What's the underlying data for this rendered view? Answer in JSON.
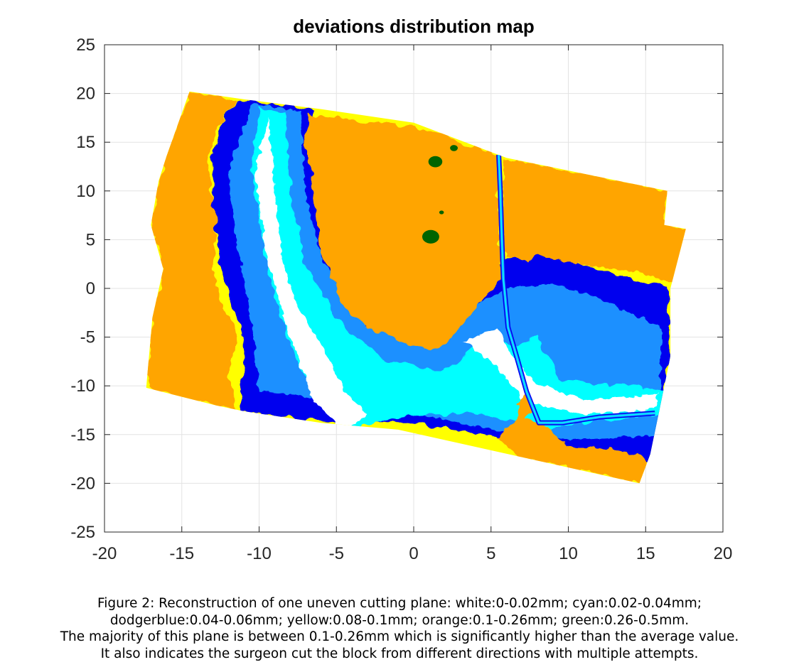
{
  "chart_data": {
    "type": "heatmap",
    "title": "deviations distribution map",
    "xlabel": "",
    "ylabel": "",
    "xlim": [
      -20,
      20
    ],
    "ylim": [
      -25,
      25
    ],
    "xticks": [
      -20,
      -15,
      -10,
      -5,
      0,
      5,
      10,
      15,
      20
    ],
    "yticks": [
      25,
      20,
      15,
      10,
      5,
      0,
      -5,
      -10,
      -15,
      -20,
      -25
    ],
    "grid": true,
    "color_classes": [
      {
        "name": "white",
        "range": "0-0.02mm",
        "color": "#ffffff"
      },
      {
        "name": "cyan",
        "range": "0.02-0.04mm",
        "color": "#00ffff"
      },
      {
        "name": "dodgerblue",
        "range": "0.04-0.06mm",
        "color": "#1e90ff"
      },
      {
        "name": "blue",
        "range": "",
        "color": "#0000ee"
      },
      {
        "name": "yellow",
        "range": "0.08-0.1mm",
        "color": "#ffff00"
      },
      {
        "name": "orange",
        "range": "0.1-0.26mm",
        "color": "#ffa500"
      },
      {
        "name": "green",
        "range": "0.26-0.5mm",
        "color": "#006400"
      }
    ],
    "plane_outline": [
      [
        -14.5,
        20.2
      ],
      [
        -11,
        19.4
      ],
      [
        -6,
        18.4
      ],
      [
        0,
        17
      ],
      [
        6,
        13.4
      ],
      [
        16.4,
        10
      ],
      [
        16.2,
        6.5
      ],
      [
        17.6,
        6.1
      ],
      [
        16.6,
        0
      ],
      [
        16.6,
        -7
      ],
      [
        15.3,
        -17
      ],
      [
        14.6,
        -20
      ],
      [
        -1,
        -14.5
      ],
      [
        -6,
        -13.8
      ],
      [
        -11,
        -12.6
      ],
      [
        -12.8,
        -12
      ],
      [
        -17.3,
        -10.2
      ],
      [
        -16.9,
        -3
      ],
      [
        -16.2,
        2
      ],
      [
        -17,
        6.5
      ],
      [
        -16.5,
        11
      ],
      [
        -16,
        13.5
      ]
    ],
    "regions": {
      "blue_band": [
        [
          -11.2,
          19.4
        ],
        [
          -6.5,
          18.3
        ],
        [
          -6,
          10
        ],
        [
          -5,
          3
        ],
        [
          -3.5,
          -1
        ],
        [
          -1,
          -3
        ],
        [
          1.5,
          -4
        ],
        [
          3.3,
          -0.5
        ],
        [
          5,
          2
        ],
        [
          7,
          4
        ],
        [
          10,
          3
        ],
        [
          14,
          1
        ],
        [
          16.4,
          0.2
        ],
        [
          16.5,
          -7
        ],
        [
          15.5,
          -17.8
        ],
        [
          11,
          -17
        ],
        [
          6,
          -15.5
        ],
        [
          0,
          -13.8
        ],
        [
          -5,
          -13.8
        ],
        [
          -11.2,
          -12.6
        ],
        [
          -11,
          -5
        ],
        [
          -12.5,
          2
        ],
        [
          -13,
          8
        ],
        [
          -13,
          14
        ],
        [
          -12.5,
          17
        ]
      ],
      "dodgerblue_band": [
        [
          -10.5,
          18.9
        ],
        [
          -7.3,
          18.2
        ],
        [
          -7,
          10
        ],
        [
          -6,
          3
        ],
        [
          -3,
          -3.8
        ],
        [
          1.5,
          -5.5
        ],
        [
          3.5,
          -2
        ],
        [
          6,
          0
        ],
        [
          9,
          0.5
        ],
        [
          12,
          -1
        ],
        [
          16,
          -4
        ],
        [
          16,
          -15
        ],
        [
          10,
          -15.5
        ],
        [
          5,
          -14.5
        ],
        [
          0,
          -12.8
        ],
        [
          -4.5,
          -11.5
        ],
        [
          -10,
          -10.5
        ],
        [
          -10.5,
          -3
        ],
        [
          -11.5,
          5
        ],
        [
          -12,
          12
        ]
      ],
      "cyan_band": [
        [
          -10,
          18.6
        ],
        [
          -8.3,
          18
        ],
        [
          -8,
          10
        ],
        [
          -7,
          2.5
        ],
        [
          -5,
          -3
        ],
        [
          -2,
          -7.2
        ],
        [
          2,
          -8.5
        ],
        [
          4.5,
          -5
        ],
        [
          6.5,
          -6
        ],
        [
          8,
          -5
        ],
        [
          9.5,
          -9.5
        ],
        [
          14,
          -10
        ],
        [
          16.3,
          -10.5
        ],
        [
          16,
          -13
        ],
        [
          12,
          -13.5
        ],
        [
          8.5,
          -14.5
        ],
        [
          4,
          -12.8
        ],
        [
          0,
          -13
        ],
        [
          -4,
          -14.3
        ],
        [
          -6,
          -12
        ],
        [
          -8,
          -6
        ],
        [
          -9.5,
          2
        ],
        [
          -10.5,
          12
        ]
      ],
      "white_band": [
        [
          -9.4,
          17.6
        ],
        [
          -9,
          10
        ],
        [
          -8.5,
          3
        ],
        [
          -7.5,
          -2
        ],
        [
          -5.5,
          -7
        ],
        [
          -4.5,
          -10.5
        ],
        [
          -3,
          -13
        ],
        [
          -4.5,
          -14.5
        ],
        [
          -6.5,
          -11.5
        ],
        [
          -8,
          -5
        ],
        [
          -9.5,
          3
        ],
        [
          -10.3,
          12
        ]
      ],
      "white_channel": [
        [
          5.4,
          -4
        ],
        [
          6.4,
          -7.2
        ],
        [
          8,
          -9.8
        ],
        [
          11,
          -11.5
        ],
        [
          15.8,
          -10.8
        ],
        [
          15.6,
          -12.4
        ],
        [
          11,
          -13
        ],
        [
          7.2,
          -11.6
        ],
        [
          5,
          -7.5
        ],
        [
          3.3,
          -5.5
        ]
      ],
      "orange_u": [
        [
          -6.8,
          17.8
        ],
        [
          0,
          16.6
        ],
        [
          5.4,
          13.6
        ],
        [
          5.6,
          1
        ],
        [
          4.3,
          -1.5
        ],
        [
          2.5,
          -5
        ],
        [
          1.6,
          -6.3
        ],
        [
          -0.3,
          -5.8
        ],
        [
          -1.5,
          -5
        ],
        [
          -3,
          -4.1
        ],
        [
          -4.5,
          -1.8
        ],
        [
          -5.2,
          0.6
        ],
        [
          -6.1,
          4.6
        ],
        [
          -6.5,
          9.8
        ],
        [
          -7,
          14.8
        ]
      ],
      "orange_right": [
        [
          5.8,
          13.4
        ],
        [
          16.4,
          10
        ],
        [
          16.2,
          6.5
        ],
        [
          17.6,
          6.1
        ],
        [
          16.8,
          0.5
        ],
        [
          14.5,
          1.6
        ],
        [
          11,
          2.4
        ],
        [
          8,
          3.4
        ],
        [
          7.4,
          2.7
        ],
        [
          6,
          3.4
        ],
        [
          5.8,
          5
        ]
      ],
      "orange_left": [
        [
          -14.5,
          20.2
        ],
        [
          -11.3,
          19.3
        ],
        [
          -12.8,
          16.5
        ],
        [
          -13.3,
          12
        ],
        [
          -12.8,
          7
        ],
        [
          -13,
          2
        ],
        [
          -12.4,
          -2
        ],
        [
          -11.3,
          -5
        ],
        [
          -12,
          -8.6
        ],
        [
          -11.5,
          -12.5
        ],
        [
          -12.8,
          -12
        ],
        [
          -17.3,
          -10.2
        ],
        [
          -16.9,
          -3
        ],
        [
          -16.2,
          2
        ],
        [
          -17,
          6.5
        ],
        [
          -16.5,
          11
        ],
        [
          -16,
          13.5
        ]
      ],
      "orange_bottom_right": [
        [
          6.8,
          -13
        ],
        [
          8.6,
          -14.2
        ],
        [
          10,
          -16.2
        ],
        [
          12.2,
          -16.4
        ],
        [
          14.6,
          -17
        ],
        [
          15.2,
          -18.2
        ],
        [
          14.6,
          -20
        ],
        [
          10,
          -18.3
        ],
        [
          6.8,
          -17.3
        ],
        [
          5.4,
          -15.4
        ]
      ],
      "orange_center_streak": [
        [
          6.7,
          -12
        ],
        [
          7.4,
          -10.5
        ],
        [
          7.6,
          -12.6
        ],
        [
          6.8,
          -14
        ]
      ],
      "crack": [
        [
          5.5,
          13.7
        ],
        [
          5.6,
          10
        ],
        [
          5.7,
          5
        ],
        [
          5.8,
          1
        ],
        [
          6.1,
          -4
        ],
        [
          6.6,
          -6.7
        ],
        [
          7.3,
          -10.6
        ],
        [
          8.1,
          -13.8
        ],
        [
          9.6,
          -13.8
        ],
        [
          12,
          -13.2
        ],
        [
          15.6,
          -12.8
        ]
      ],
      "green_spots": [
        {
          "x": 1.1,
          "y": 5.3,
          "size": 0.55
        },
        {
          "x": 1.4,
          "y": 13.0,
          "size": 0.45
        },
        {
          "x": 2.6,
          "y": 14.4,
          "size": 0.25
        },
        {
          "x": 1.8,
          "y": 7.8,
          "size": 0.15
        }
      ]
    }
  },
  "caption": {
    "lines": [
      "Figure 2: Reconstruction of one uneven cutting plane: white:0-0.02mm; cyan:0.02-0.04mm;",
      "dodgerblue:0.04-0.06mm; yellow:0.08-0.1mm; orange:0.1-0.26mm; green:0.26-0.5mm.",
      "The majority of this plane is between 0.1-0.26mm which is significantly higher than the average value.",
      "It also indicates the surgeon cut the block from different directions with multiple attempts."
    ]
  }
}
